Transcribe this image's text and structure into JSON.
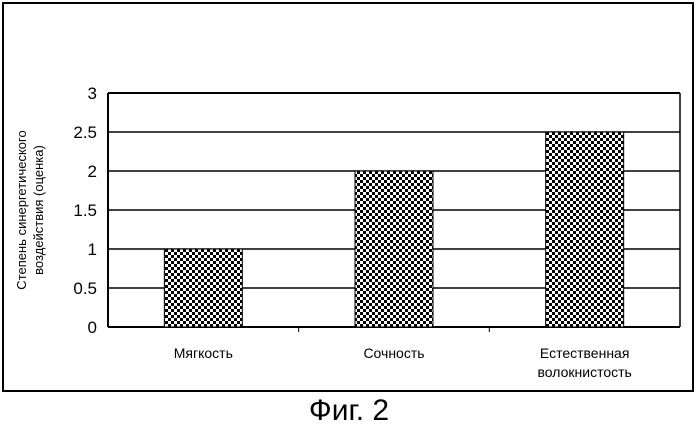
{
  "chart_data": {
    "type": "bar",
    "categories": [
      "Мягкость",
      "Сочность",
      "Естественная волокнистость"
    ],
    "category_lines": [
      [
        "Мягкость"
      ],
      [
        "Сочность"
      ],
      [
        "Естественная",
        "волокнистость"
      ]
    ],
    "values": [
      1,
      2,
      2.5
    ],
    "ylabel_lines": [
      "Степень синергетического",
      "воздействия (оценка)"
    ],
    "ylim": [
      0,
      3
    ],
    "yticks": [
      "0",
      "0.5",
      "1",
      "1.5",
      "2",
      "2.5",
      "3"
    ],
    "grid": true,
    "bar_fill": "checkered pattern",
    "colors": {
      "bar_dark": "#000000",
      "bar_light": "#ffffff",
      "axis": "#000000"
    }
  },
  "caption": "Фиг. 2"
}
